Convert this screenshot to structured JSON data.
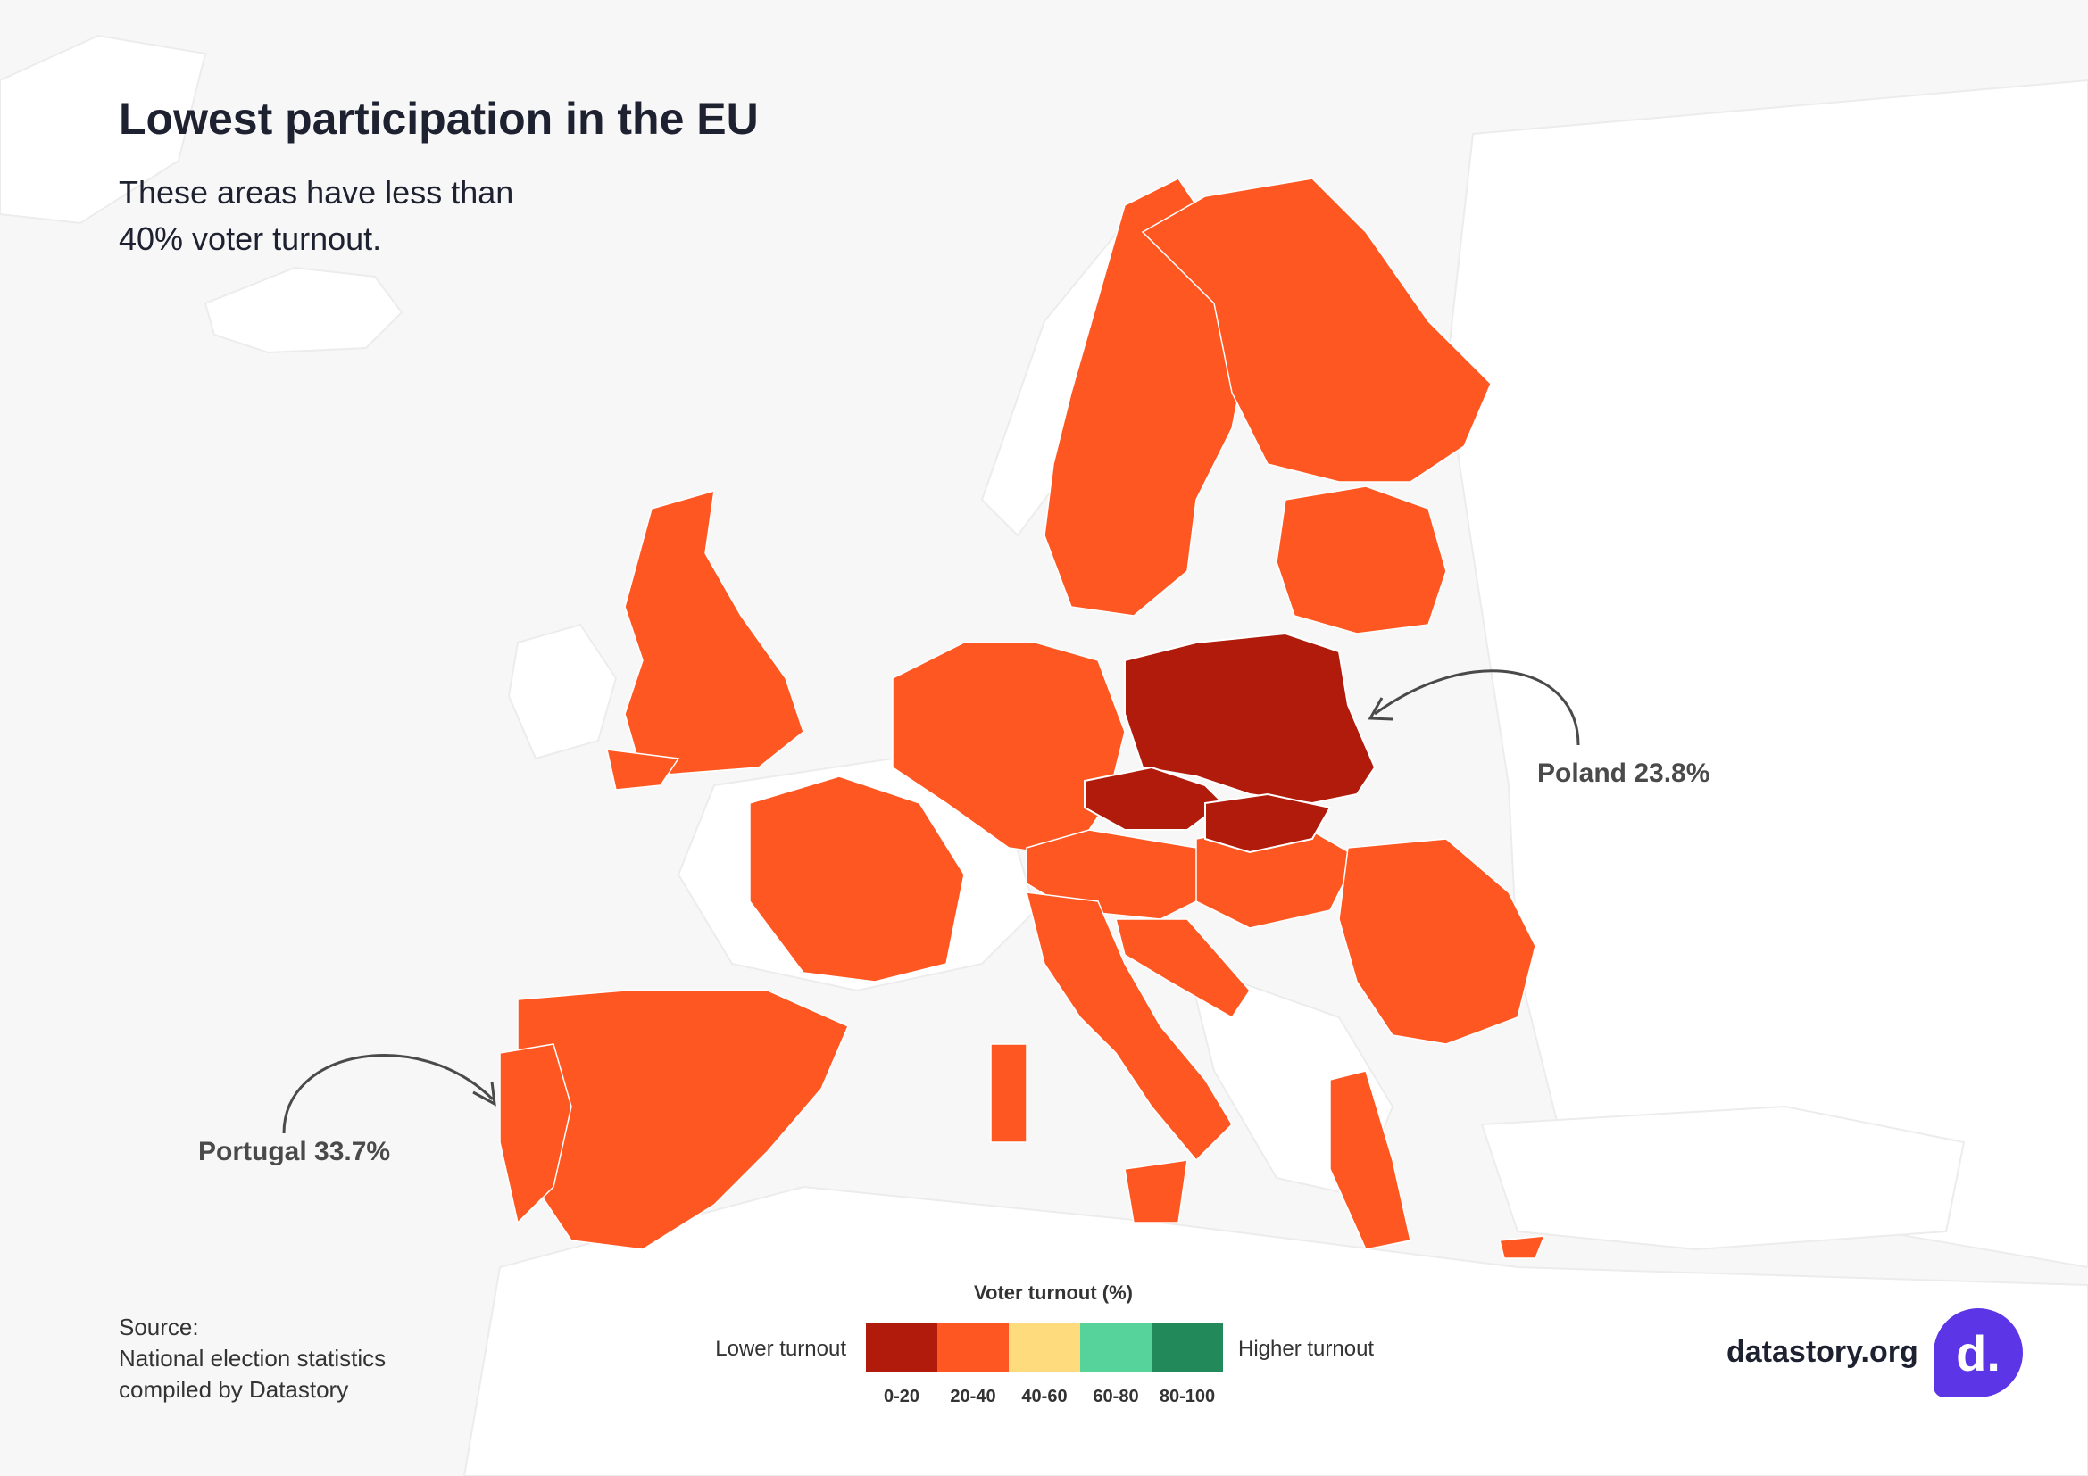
{
  "title": "Lowest participation in the EU",
  "subtitle_lines": [
    "These areas have less than",
    "40% voter turnout."
  ],
  "annotations": {
    "poland": "Poland 23.8%",
    "portugal": "Portugal 33.7%"
  },
  "source": {
    "label": "Source:",
    "line1": "National election statistics",
    "line2": "compiled by Datastory"
  },
  "legend": {
    "title": "Voter turnout (%)",
    "low_label": "Lower turnout",
    "high_label": "Higher turnout",
    "bins": [
      {
        "label": "0-20",
        "color": "#b01b0b"
      },
      {
        "label": "20-40",
        "color": "#ff5722"
      },
      {
        "label": "40-60",
        "color": "#fedb7d"
      },
      {
        "label": "60-80",
        "color": "#56d39b"
      },
      {
        "label": "80-100",
        "color": "#21895a"
      }
    ]
  },
  "brand": {
    "text": "datastory.org",
    "logo_letter": "d.",
    "logo_color": "#5b35e6"
  },
  "colors": {
    "background": "#f7f7f7",
    "land": "#ffffff",
    "turnout_20_40": "#ff5722",
    "turnout_0_20": "#b01b0b"
  }
}
